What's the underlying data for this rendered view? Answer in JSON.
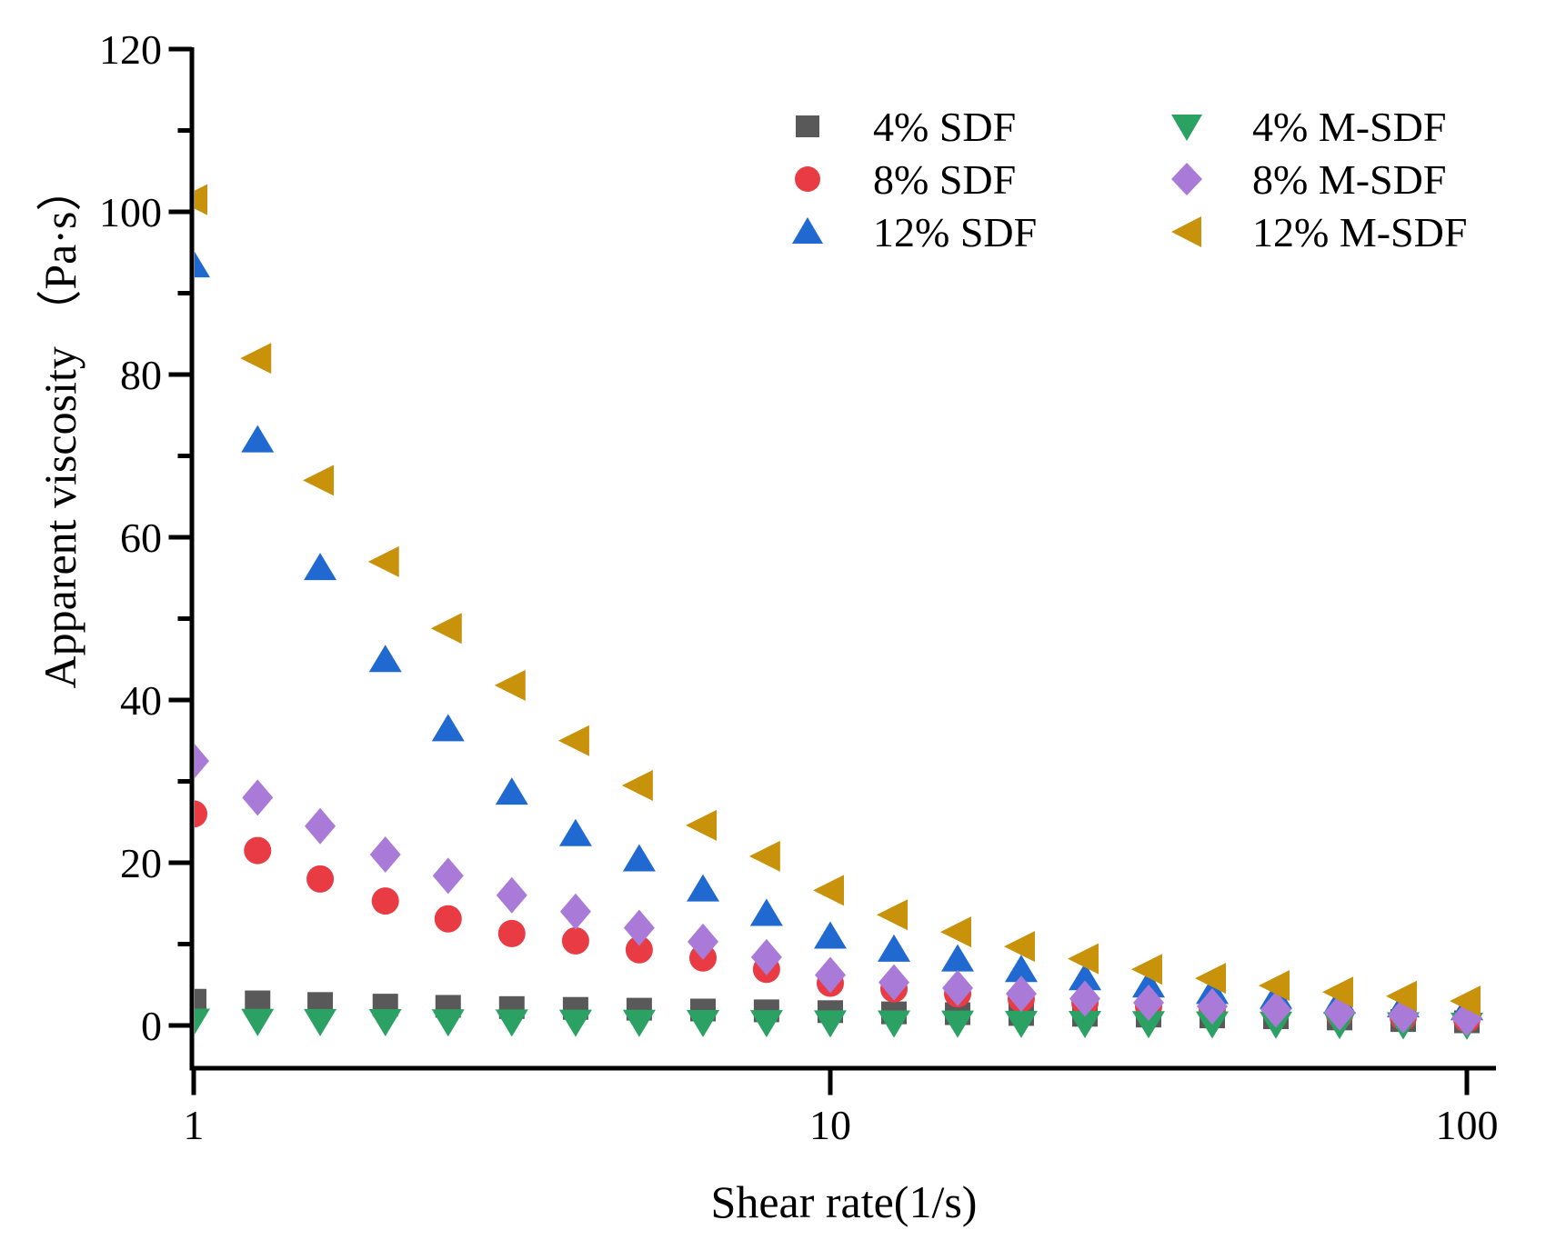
{
  "chart_data": {
    "type": "scatter",
    "title": "",
    "xlabel": "Shear rate(1/s)",
    "ylabel": "Apparent viscosity （Pa·s）",
    "x_scale": "log",
    "xlim": [
      1,
      100
    ],
    "ylim": [
      -5,
      120
    ],
    "x_ticks": [
      1,
      10,
      100
    ],
    "y_ticks": [
      0,
      20,
      40,
      60,
      80,
      100,
      120
    ],
    "y_minor_ticks": [
      10,
      30,
      50,
      70,
      90,
      110
    ],
    "grid": false,
    "legend_position": "top-right-inside",
    "axis_color": "#000000",
    "x": [
      1,
      1.26,
      1.58,
      2,
      2.51,
      3.16,
      3.98,
      5.01,
      6.31,
      7.94,
      10,
      12.59,
      15.85,
      19.95,
      25.12,
      31.62,
      39.81,
      50.12,
      63.1,
      79.43,
      100
    ],
    "series": [
      {
        "name": "4% SDF",
        "marker": "square",
        "color": "#595959",
        "values": [
          3.1,
          2.9,
          2.7,
          2.5,
          2.35,
          2.2,
          2.1,
          2.0,
          1.9,
          1.8,
          1.7,
          1.55,
          1.45,
          1.35,
          1.25,
          1.15,
          1.05,
          0.95,
          0.8,
          0.6,
          0.45
        ]
      },
      {
        "name": "8% SDF",
        "marker": "circle",
        "color": "#e83b43",
        "values": [
          26,
          21.5,
          18,
          15.3,
          13.1,
          11.3,
          10.4,
          9.3,
          8.3,
          6.9,
          5.2,
          4.5,
          3.9,
          3.3,
          2.8,
          2.35,
          1.95,
          1.6,
          1.3,
          1.0,
          0.75
        ]
      },
      {
        "name": "12% SDF",
        "marker": "triangle-up",
        "color": "#2069d0",
        "values": [
          93.5,
          72,
          56.3,
          45,
          36.5,
          28.7,
          23.6,
          20.5,
          16.8,
          13.8,
          11.0,
          9.4,
          8.2,
          6.9,
          5.9,
          5.0,
          4.2,
          3.6,
          3.0,
          2.55,
          2.2
        ]
      },
      {
        "name": "4% M-SDF",
        "marker": "triangle-down",
        "color": "#2ba263",
        "values": [
          0.5,
          0.48,
          0.46,
          0.44,
          0.42,
          0.4,
          0.38,
          0.36,
          0.34,
          0.32,
          0.3,
          0.28,
          0.26,
          0.24,
          0.22,
          0.2,
          0.17,
          0.14,
          0.1,
          0.06,
          0.02
        ]
      },
      {
        "name": "8% M-SDF",
        "marker": "diamond",
        "color": "#a97ad8",
        "values": [
          32.5,
          28,
          24.5,
          21,
          18.4,
          16,
          14,
          12,
          10.3,
          8.4,
          6.2,
          5.3,
          4.6,
          3.9,
          3.3,
          2.8,
          2.35,
          1.95,
          1.6,
          1.25,
          0.9
        ]
      },
      {
        "name": "12% M-SDF",
        "marker": "triangle-left",
        "color": "#c8930b",
        "values": [
          101.5,
          82,
          67,
          57,
          48.8,
          41.8,
          35,
          29.5,
          24.6,
          20.8,
          16.6,
          13.6,
          11.5,
          9.7,
          8.2,
          6.9,
          5.8,
          4.9,
          4.1,
          3.6,
          3.0
        ]
      }
    ]
  }
}
